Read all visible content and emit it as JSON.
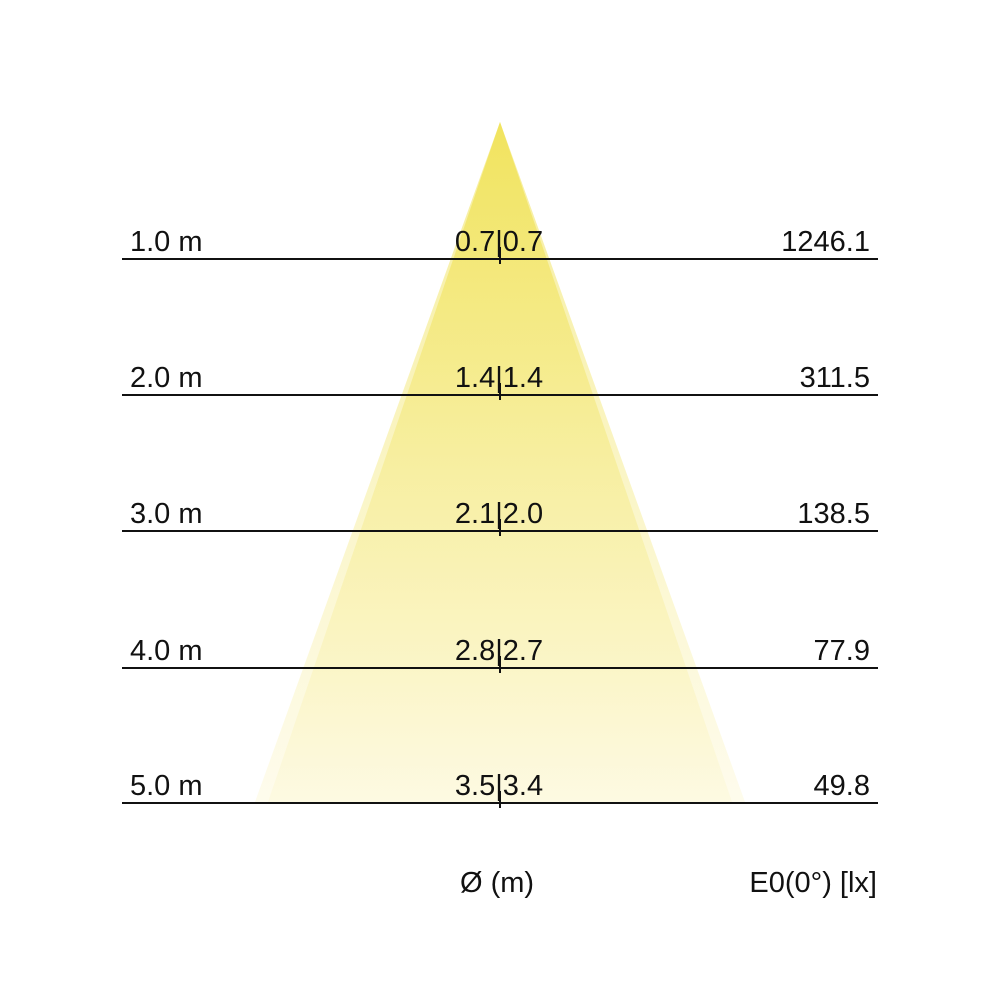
{
  "colors": {
    "beam_top": "#efe04a",
    "beam_bottom": "#fdf9de",
    "line": "#111111"
  },
  "rows": [
    {
      "distance": "1.0 m",
      "diameter": "0.7|0.7",
      "illuminance": "1246.1"
    },
    {
      "distance": "2.0 m",
      "diameter": "1.4|1.4",
      "illuminance": "311.5"
    },
    {
      "distance": "3.0 m",
      "diameter": "2.1|2.0",
      "illuminance": "138.5"
    },
    {
      "distance": "4.0 m",
      "diameter": "2.8|2.7",
      "illuminance": "77.9"
    },
    {
      "distance": "5.0 m",
      "diameter": "3.5|3.4",
      "illuminance": "49.8"
    }
  ],
  "footer": {
    "diameter_label": "Ø (m)",
    "illuminance_label": "E0(0°) [lx]"
  }
}
